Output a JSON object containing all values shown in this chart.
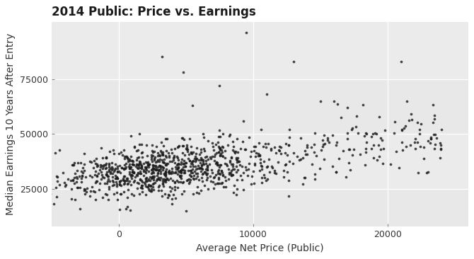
{
  "title": "2014 Public: Price vs. Earnings",
  "xlabel": "Average Net Price (Public)",
  "ylabel": "Median Earnings 10 Years After Entry",
  "bg_color": "#EBEBEB",
  "panel_bg": "#EBEBEB",
  "dot_color": "#1a1a1a",
  "dot_size": 7,
  "dot_alpha": 0.8,
  "xlim": [
    -5000,
    26000
  ],
  "ylim": [
    8000,
    101000
  ],
  "xticks": [
    0,
    10000,
    20000
  ],
  "yticks": [
    25000,
    50000,
    75000
  ],
  "grid_color": "#ffffff",
  "seed": 42,
  "n_main": 850,
  "main_x_mean": 2800,
  "main_x_std": 3800,
  "main_y_mean": 33500,
  "main_y_std": 6500,
  "price_earn_corr": 0.4,
  "n_high": 200,
  "title_fontsize": 12,
  "label_fontsize": 10,
  "tick_fontsize": 9
}
